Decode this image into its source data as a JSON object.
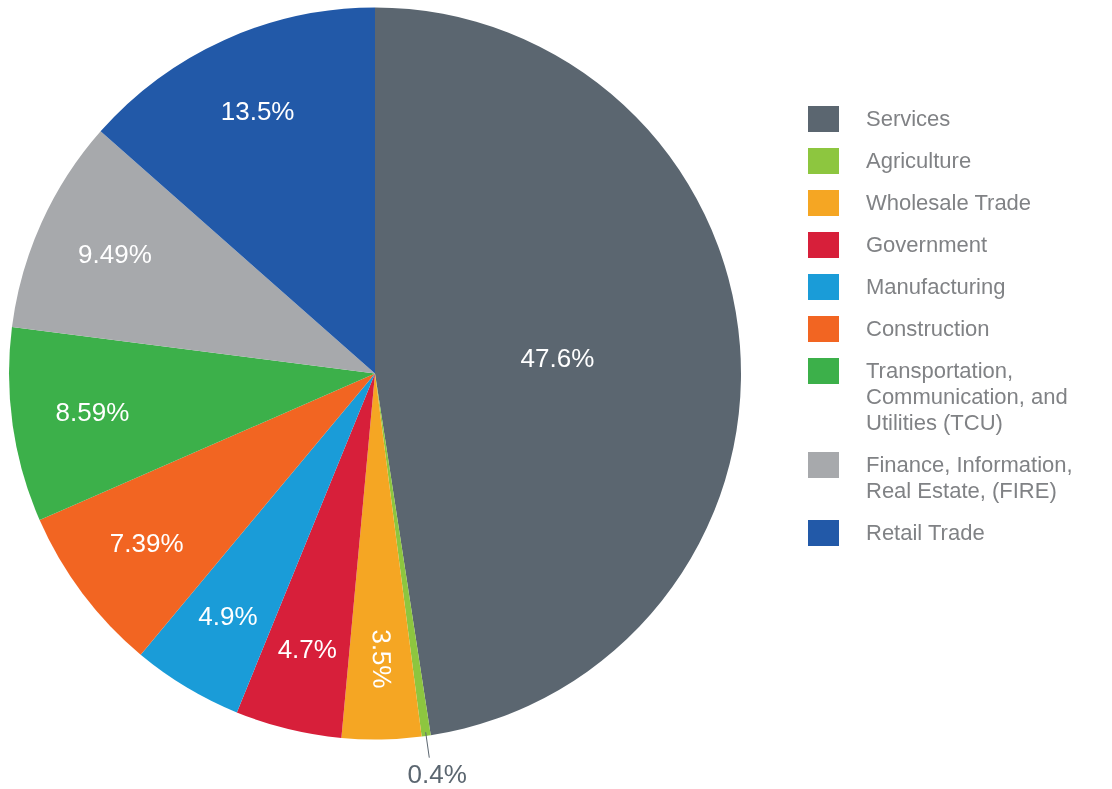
{
  "chart_data": {
    "type": "pie",
    "categories": [
      "Services",
      "Agriculture",
      "Wholesale Trade",
      "Government",
      "Manufacturing",
      "Construction",
      "Transportation, Communication, and Utilities (TCU)",
      "Finance, Information, Real Estate, (FIRE)",
      "Retail Trade"
    ],
    "values": [
      47.6,
      0.4,
      3.5,
      4.7,
      4.9,
      7.39,
      8.59,
      9.49,
      13.5
    ],
    "colors": [
      "#5b6670",
      "#8dc63f",
      "#f5a623",
      "#d71f3a",
      "#1a9cd8",
      "#f26522",
      "#3cb04a",
      "#a7a9ac",
      "#2259a8"
    ],
    "value_labels": [
      "47.6%",
      "0.4%",
      "3.5%",
      "4.7%",
      "4.9%",
      "7.39%",
      "8.59%",
      "9.49%",
      "13.5%"
    ],
    "legend": "right"
  }
}
